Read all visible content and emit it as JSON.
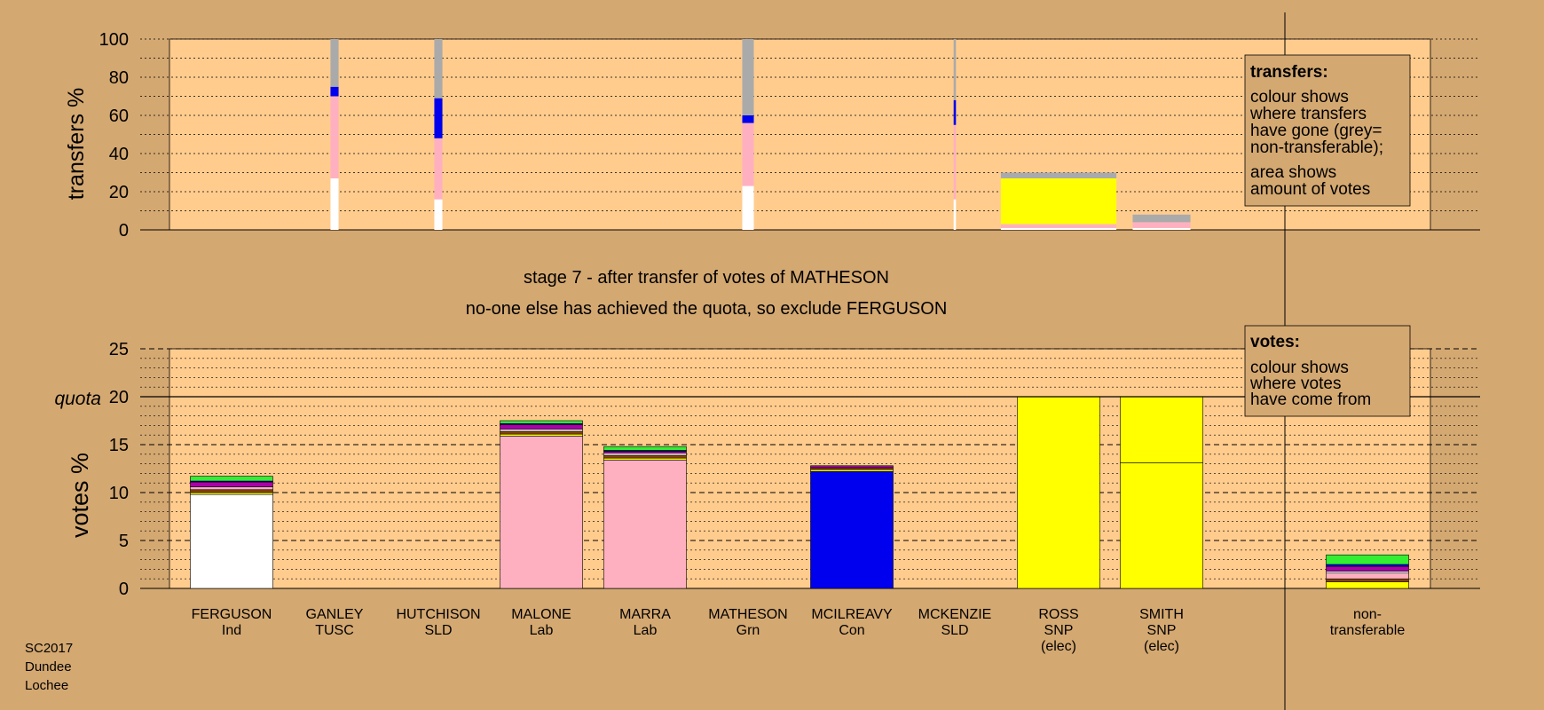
{
  "colors": {
    "background": "#d4a871",
    "plot_bg": "#ffcc8e",
    "non_transferable": "#aaaaaa",
    "Ind": "#ffffff",
    "Lab": "#ffb0c0",
    "Con": "#0000ee",
    "SNP": "#ffff00",
    "SLD": "#aa00aa",
    "Grn": "#33ee33",
    "TUSC": "#884400"
  },
  "stage_text": {
    "line1": "stage 7 - after transfer of votes of MATHESON",
    "line2": "no-one else has achieved the quota, so exclude FERGUSON"
  },
  "footer": {
    "line1": "SC2017",
    "line2": "Dundee",
    "line3": "Lochee"
  },
  "legend_transfers": {
    "title": "transfers:",
    "line1": "colour shows",
    "line2": "where transfers",
    "line3": "have gone (grey=",
    "line4": "non-transferable);",
    "line5": "area shows",
    "line6": "amount of votes"
  },
  "legend_votes": {
    "title": "votes:",
    "line1": "colour shows",
    "line2": "where votes",
    "line3": "have come from"
  },
  "chart_data": [
    {
      "type": "bar",
      "name": "transfers",
      "ylabel": "transfers %",
      "ylim": [
        0,
        100
      ],
      "yticks": [
        0,
        20,
        40,
        60,
        80,
        100
      ],
      "columns": [
        {
          "candidate": "FERGUSON",
          "width": 0,
          "segments": []
        },
        {
          "candidate": "GANLEY",
          "width": 0.07,
          "segments": [
            {
              "party": "Ind",
              "value": 27
            },
            {
              "party": "Lab",
              "value": 43
            },
            {
              "party": "Con",
              "value": 5
            },
            {
              "party": "non_transferable",
              "value": 25
            }
          ]
        },
        {
          "candidate": "HUTCHISON",
          "width": 0.07,
          "segments": [
            {
              "party": "Ind",
              "value": 16
            },
            {
              "party": "Lab",
              "value": 32
            },
            {
              "party": "Con",
              "value": 21
            },
            {
              "party": "non_transferable",
              "value": 31
            }
          ]
        },
        {
          "candidate": "MALONE",
          "width": 0,
          "segments": []
        },
        {
          "candidate": "MARRA",
          "width": 0,
          "segments": []
        },
        {
          "candidate": "MATHESON",
          "width": 0.1,
          "segments": [
            {
              "party": "Ind",
              "value": 23
            },
            {
              "party": "Lab",
              "value": 33
            },
            {
              "party": "Con",
              "value": 4
            },
            {
              "party": "non_transferable",
              "value": 40
            }
          ]
        },
        {
          "candidate": "MCILREAVY",
          "width": 0,
          "segments": []
        },
        {
          "candidate": "MCKENZIE",
          "width": 0.02,
          "segments": [
            {
              "party": "Ind",
              "value": 16
            },
            {
              "party": "Lab",
              "value": 39
            },
            {
              "party": "Con",
              "value": 13
            },
            {
              "party": "non_transferable",
              "value": 32
            }
          ]
        },
        {
          "candidate": "ROSS",
          "width": 1.0,
          "segments": [
            {
              "party": "Ind",
              "value": 1
            },
            {
              "party": "Lab",
              "value": 2
            },
            {
              "party": "SNP",
              "value": 24
            },
            {
              "party": "non_transferable",
              "value": 3
            }
          ]
        },
        {
          "candidate": "SMITH",
          "width": 0.5,
          "segments": [
            {
              "party": "Ind",
              "value": 1
            },
            {
              "party": "Lab",
              "value": 3
            },
            {
              "party": "non_transferable",
              "value": 4
            }
          ]
        }
      ]
    },
    {
      "type": "bar",
      "name": "votes",
      "ylabel": "votes %",
      "ylim": [
        0,
        25
      ],
      "yticks": [
        0,
        5,
        10,
        15,
        20,
        25
      ],
      "quota": {
        "value": 20,
        "label": "quota"
      },
      "categories": [
        {
          "name": "FERGUSON",
          "party": "Ind",
          "note": ""
        },
        {
          "name": "GANLEY",
          "party": "TUSC",
          "note": ""
        },
        {
          "name": "HUTCHISON",
          "party": "SLD",
          "note": ""
        },
        {
          "name": "MALONE",
          "party": "Lab",
          "note": ""
        },
        {
          "name": "MARRA",
          "party": "Lab",
          "note": ""
        },
        {
          "name": "MATHESON",
          "party": "Grn",
          "note": ""
        },
        {
          "name": "MCILREAVY",
          "party": "Con",
          "note": ""
        },
        {
          "name": "MCKENZIE",
          "party": "SLD",
          "note": ""
        },
        {
          "name": "ROSS",
          "party": "SNP",
          "note": "(elec)"
        },
        {
          "name": "SMITH",
          "party": "SNP",
          "note": "(elec)"
        }
      ],
      "bars": [
        {
          "candidate": "FERGUSON",
          "segments": [
            {
              "party": "Ind",
              "value": 9.8
            },
            {
              "party": "SNP",
              "value": 0.2
            },
            {
              "party": "TUSC",
              "value": 0.3
            },
            {
              "party": "Lab",
              "value": 0.3
            },
            {
              "party": "SLD",
              "value": 0.5
            },
            {
              "party": "Con",
              "value": 0.1
            },
            {
              "party": "Grn",
              "value": 0.5
            }
          ]
        },
        {
          "candidate": "GANLEY",
          "segments": []
        },
        {
          "candidate": "HUTCHISON",
          "segments": []
        },
        {
          "candidate": "MALONE",
          "segments": [
            {
              "party": "Lab",
              "value": 15.9
            },
            {
              "party": "SNP",
              "value": 0.2
            },
            {
              "party": "TUSC",
              "value": 0.3
            },
            {
              "party": "Ind",
              "value": 0.2
            },
            {
              "party": "SLD",
              "value": 0.5
            },
            {
              "party": "Con",
              "value": 0.1
            },
            {
              "party": "Grn",
              "value": 0.3
            }
          ]
        },
        {
          "candidate": "MARRA",
          "segments": [
            {
              "party": "Lab",
              "value": 13.4
            },
            {
              "party": "SNP",
              "value": 0.2
            },
            {
              "party": "TUSC",
              "value": 0.3
            },
            {
              "party": "Ind",
              "value": 0.2
            },
            {
              "party": "SLD",
              "value": 0.2
            },
            {
              "party": "Con",
              "value": 0.1
            },
            {
              "party": "Grn",
              "value": 0.4
            }
          ]
        },
        {
          "candidate": "MATHESON",
          "segments": []
        },
        {
          "candidate": "MCILREAVY",
          "segments": [
            {
              "party": "Con",
              "value": 12.2
            },
            {
              "party": "SNP",
              "value": 0.2
            },
            {
              "party": "TUSC",
              "value": 0.2
            },
            {
              "party": "SLD",
              "value": 0.2
            }
          ]
        },
        {
          "candidate": "MCKENZIE",
          "segments": []
        },
        {
          "candidate": "ROSS",
          "segments": [
            {
              "party": "SNP",
              "value": 20
            }
          ]
        },
        {
          "candidate": "SMITH",
          "segments": [
            {
              "party": "SNP",
              "value": 13.1
            },
            {
              "party": "SNP",
              "value": 6.9
            }
          ]
        }
      ],
      "non_transferable": {
        "label1": "non-",
        "label2": "transferable",
        "segments": [
          {
            "party": "SNP",
            "value": 0.7
          },
          {
            "party": "TUSC",
            "value": 0.3
          },
          {
            "party": "Lab",
            "value": 0.6
          },
          {
            "party": "Ind",
            "value": 0.2
          },
          {
            "party": "SLD",
            "value": 0.5
          },
          {
            "party": "Con",
            "value": 0.2
          },
          {
            "party": "Grn",
            "value": 1.0
          }
        ]
      }
    }
  ]
}
